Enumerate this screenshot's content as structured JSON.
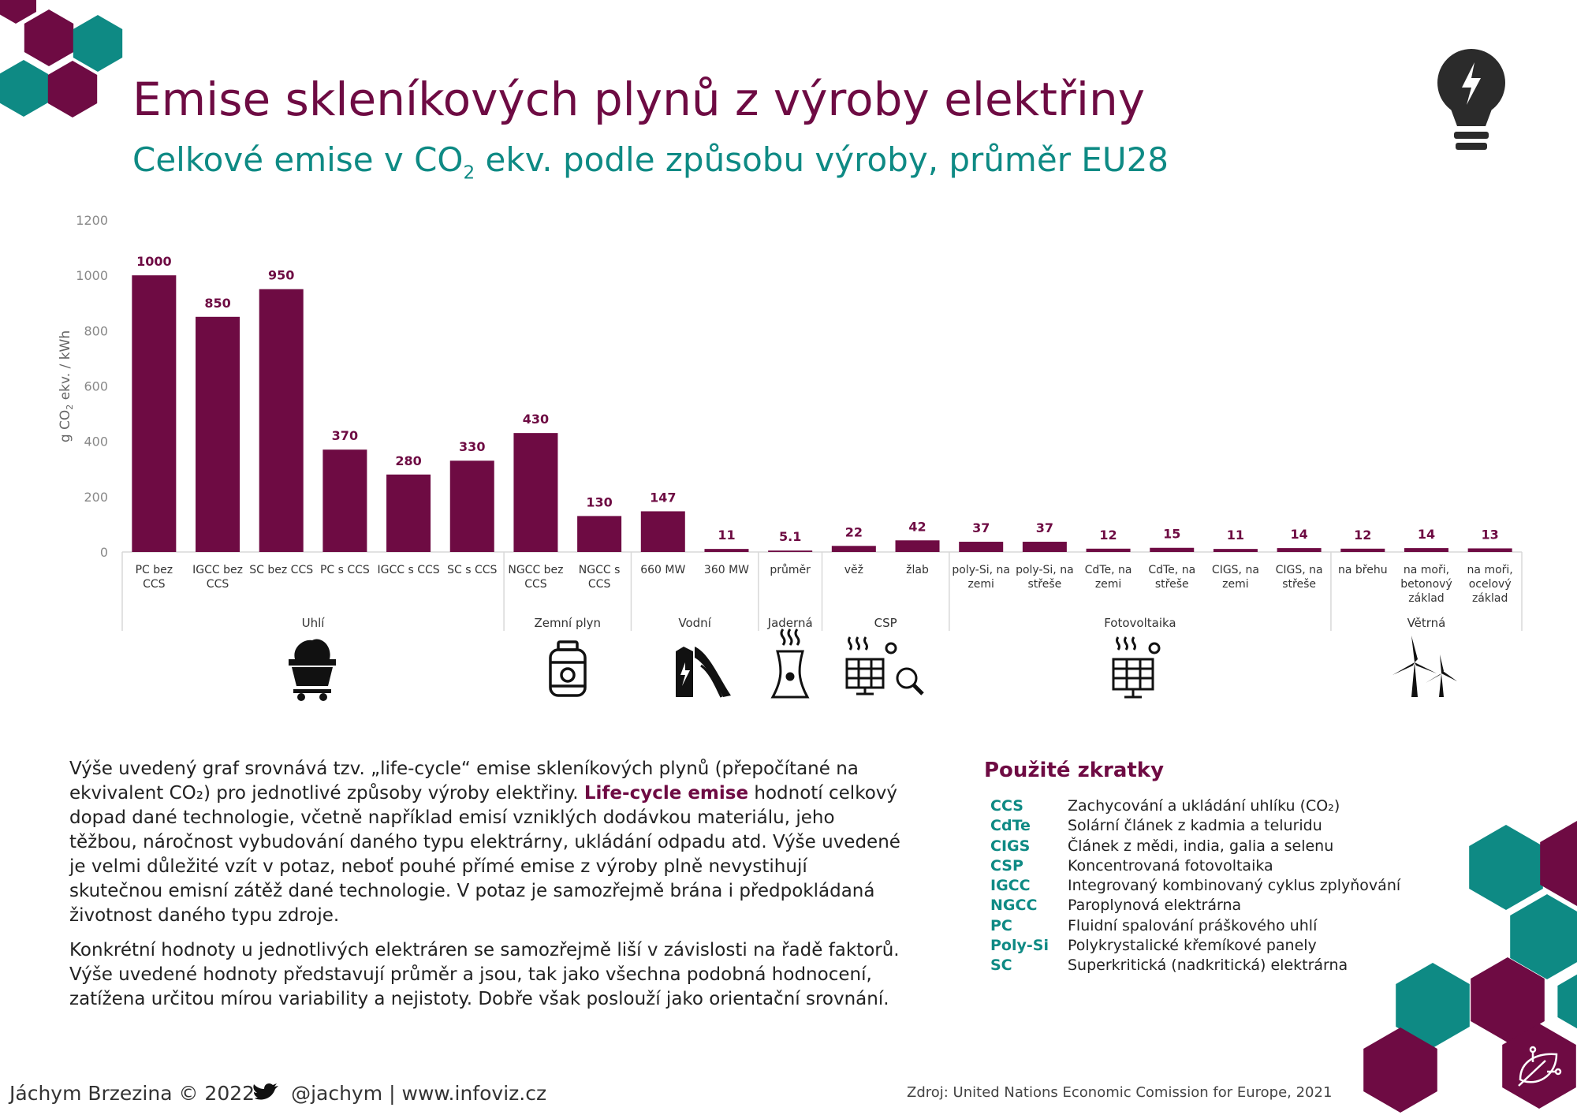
{
  "title": "Emise skleníkových plynů z výroby elektřiny",
  "subtitle_pre": "Celkové emise v CO",
  "subtitle_sub": "2",
  "subtitle_post": " ekv. podle způsobu výroby, průměr EU28",
  "chart_data": {
    "type": "bar",
    "ylabel": "g CO2 ekv. / kWh",
    "ylim": [
      0,
      1200
    ],
    "yticks": [
      0,
      200,
      400,
      600,
      800,
      1000,
      1200
    ],
    "grid": false,
    "bar_color": "#6e0b43",
    "categories": [
      [
        "PC bez",
        "CCS"
      ],
      [
        "IGCC bez",
        "CCS"
      ],
      [
        "SC bez CCS"
      ],
      [
        "PC s CCS"
      ],
      [
        "IGCC s CCS"
      ],
      [
        "SC s CCS"
      ],
      [
        "NGCC bez",
        "CCS"
      ],
      [
        "NGCC s",
        "CCS"
      ],
      [
        "660 MW"
      ],
      [
        "360 MW"
      ],
      [
        "průměr"
      ],
      [
        "věž"
      ],
      [
        "žlab"
      ],
      [
        "poly-Si, na",
        "zemi"
      ],
      [
        "poly-Si, na",
        "střeše"
      ],
      [
        "CdTe, na",
        "zemi"
      ],
      [
        "CdTe, na",
        "střeše"
      ],
      [
        "CIGS, na",
        "zemi"
      ],
      [
        "CIGS, na",
        "střeše"
      ],
      [
        "na břehu"
      ],
      [
        "na moři,",
        "betonový",
        "základ"
      ],
      [
        "na moři,",
        "ocelový",
        "základ"
      ]
    ],
    "values": [
      1000,
      850,
      950,
      370,
      280,
      330,
      430,
      130,
      147,
      11,
      5.1,
      22,
      42,
      37,
      37,
      12,
      15,
      11,
      14,
      12,
      14,
      13
    ],
    "value_labels": [
      "1000",
      "850",
      "950",
      "370",
      "280",
      "330",
      "430",
      "130",
      "147",
      "11",
      "5.1",
      "22",
      "42",
      "37",
      "37",
      "12",
      "15",
      "11",
      "14",
      "12",
      "14",
      "13"
    ],
    "groups": [
      {
        "name": "Uhlí",
        "start": 0,
        "count": 6,
        "icon": "coal-cart-icon"
      },
      {
        "name": "Zemní plyn",
        "start": 6,
        "count": 2,
        "icon": "gas-tank-icon"
      },
      {
        "name": "Vodní",
        "start": 8,
        "count": 2,
        "icon": "hydro-dam-icon"
      },
      {
        "name": "Jaderná",
        "start": 10,
        "count": 1,
        "icon": "nuclear-tower-icon"
      },
      {
        "name": "CSP",
        "start": 11,
        "count": 2,
        "icon": "solar-concentrator-icon"
      },
      {
        "name": "Fotovoltaika",
        "start": 13,
        "count": 6,
        "icon": "solar-panel-icon"
      },
      {
        "name": "Větrná",
        "start": 19,
        "count": 3,
        "icon": "wind-turbine-icon"
      }
    ]
  },
  "paragraph1": {
    "part1": "Výše uvedený graf srovnává tzv. „life-cycle“ emise skleníkových plynů (přepočítané na ekvivalent CO₂) pro jednotlivé způsoby výroby elektřiny. ",
    "highlight": "Life-cycle emise",
    "part2": " hodnotí celkový dopad dané technologie, včetně například emisí vzniklých dodávkou materiálu, jeho těžbou, náročnost vybudování daného typu elektrárny, ukládání odpadu atd. Výše uvedené je velmi důležité vzít v potaz, neboť pouhé přímé emise z výroby plně nevystihují skutečnou emisní zátěž dané technologie. V potaz je samozřejmě brána i předpokládaná životnost daného typu zdroje."
  },
  "paragraph2": "Konkrétní hodnoty u jednotlivých elektráren se samozřejmě liší v závislosti na řadě faktorů. Výše uvedené hodnoty představují průměr a jsou, tak jako všechna podobná hodnocení, zatížena určitou mírou variability a nejistoty. Dobře však poslouží jako orientační srovnání.",
  "abbreviations_title": "Použité zkratky",
  "abbreviations": [
    {
      "key": "CCS",
      "value": "Zachycování a ukládání uhlíku (CO₂)"
    },
    {
      "key": "CdTe",
      "value": "Solární článek z kadmia a teluridu"
    },
    {
      "key": "CIGS",
      "value": "Článek z mědi, india, galia a selenu"
    },
    {
      "key": "CSP",
      "value": "Koncentrovaná fotovoltaika"
    },
    {
      "key": "IGCC",
      "value": "Integrovaný kombinovaný cyklus zplyňování"
    },
    {
      "key": "NGCC",
      "value": "Paroplynová elektrárna"
    },
    {
      "key": "PC",
      "value": "Fluidní spalování práškového uhlí"
    },
    {
      "key": "Poly-Si",
      "value": "Polykrystalické křemíkové panely"
    },
    {
      "key": "SC",
      "value": "Superkritická (nadkritická) elektrárna"
    }
  ],
  "footer": {
    "author": "Jáchym Brzezina © 2022",
    "handle": "@jachym",
    "separator": "|",
    "website": "www.infoviz.cz",
    "source": "Zdroj: United Nations Economic Comission for Europe, 2021"
  },
  "colors": {
    "primary": "#6e0b43",
    "accent": "#0e8a84",
    "icon": "#222222"
  },
  "icons": {
    "top_right": "lightbulb-bolt-icon",
    "bottom_right": "leaf-circuit-icon",
    "twitter": "twitter-bird-icon"
  }
}
